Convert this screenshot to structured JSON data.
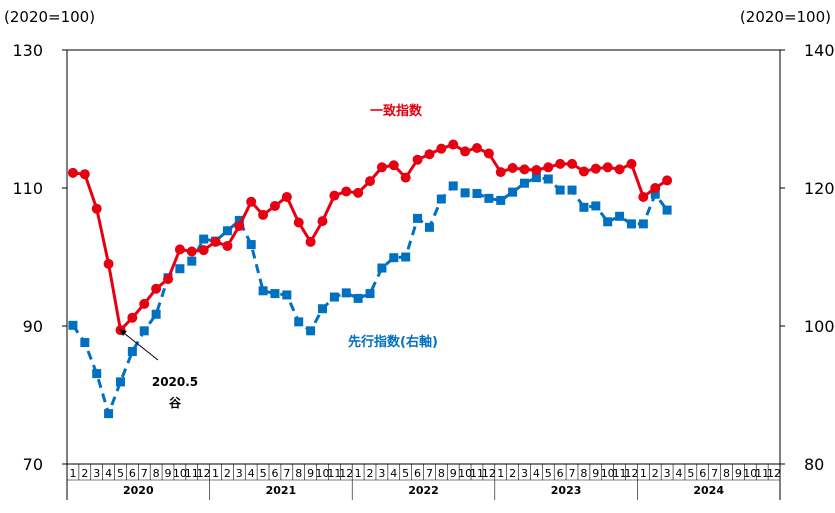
{
  "chart_data": {
    "type": "line",
    "left_axis_unit": "(2020=100)",
    "right_axis_unit": "(2020=100)",
    "ylim_left": [
      70,
      130
    ],
    "ylim_right": [
      80,
      140
    ],
    "left_ticks": [
      "130",
      "110",
      "90",
      "70"
    ],
    "right_ticks": [
      "140",
      "120",
      "100",
      "80"
    ],
    "month_labels": [
      "1",
      "2",
      "3",
      "4",
      "5",
      "6",
      "7",
      "8",
      "9",
      "10",
      "11",
      "12"
    ],
    "years": [
      "2020",
      "2021",
      "2022",
      "2023",
      "2024"
    ],
    "series": [
      {
        "name": "一致指数",
        "axis": "left",
        "color": "#e60012",
        "values": [
          112.2,
          112.0,
          107.0,
          99.0,
          89.4,
          91.2,
          93.2,
          95.4,
          96.8,
          101.1,
          100.8,
          101.0,
          102.2,
          101.6,
          104.5,
          108.0,
          106.1,
          107.4,
          108.7,
          105.0,
          102.2,
          105.2,
          108.9,
          109.5,
          109.3,
          111.0,
          113.0,
          113.3,
          111.5,
          114.1,
          114.9,
          115.7,
          116.3,
          115.3,
          115.8,
          115.0,
          112.3,
          112.9,
          112.7,
          112.6,
          113.0,
          113.5,
          113.5,
          112.4,
          112.8,
          113.0,
          112.7,
          113.5,
          108.7,
          110.0,
          111.1
        ]
      },
      {
        "name": "先行指数(右軸)",
        "axis": "right",
        "color": "#0070c0",
        "values": [
          100.1,
          97.6,
          93.1,
          87.3,
          91.9,
          96.3,
          99.3,
          101.7,
          107.0,
          108.3,
          109.4,
          112.6,
          112.3,
          113.8,
          115.3,
          111.8,
          105.1,
          104.7,
          104.5,
          100.6,
          99.3,
          102.5,
          104.2,
          104.8,
          104.0,
          104.7,
          108.4,
          109.9,
          110.0,
          115.6,
          114.3,
          118.4,
          120.3,
          119.3,
          119.2,
          118.5,
          118.2,
          119.4,
          120.7,
          121.5,
          121.3,
          119.7,
          119.7,
          117.2,
          117.4,
          115.1,
          115.9,
          114.8,
          114.8,
          119.1,
          116.8
        ]
      }
    ],
    "series_labels": [
      "一致指数",
      "先行指数(右軸)"
    ],
    "annotation": {
      "line1": "2020.5",
      "line2": "谷"
    }
  }
}
